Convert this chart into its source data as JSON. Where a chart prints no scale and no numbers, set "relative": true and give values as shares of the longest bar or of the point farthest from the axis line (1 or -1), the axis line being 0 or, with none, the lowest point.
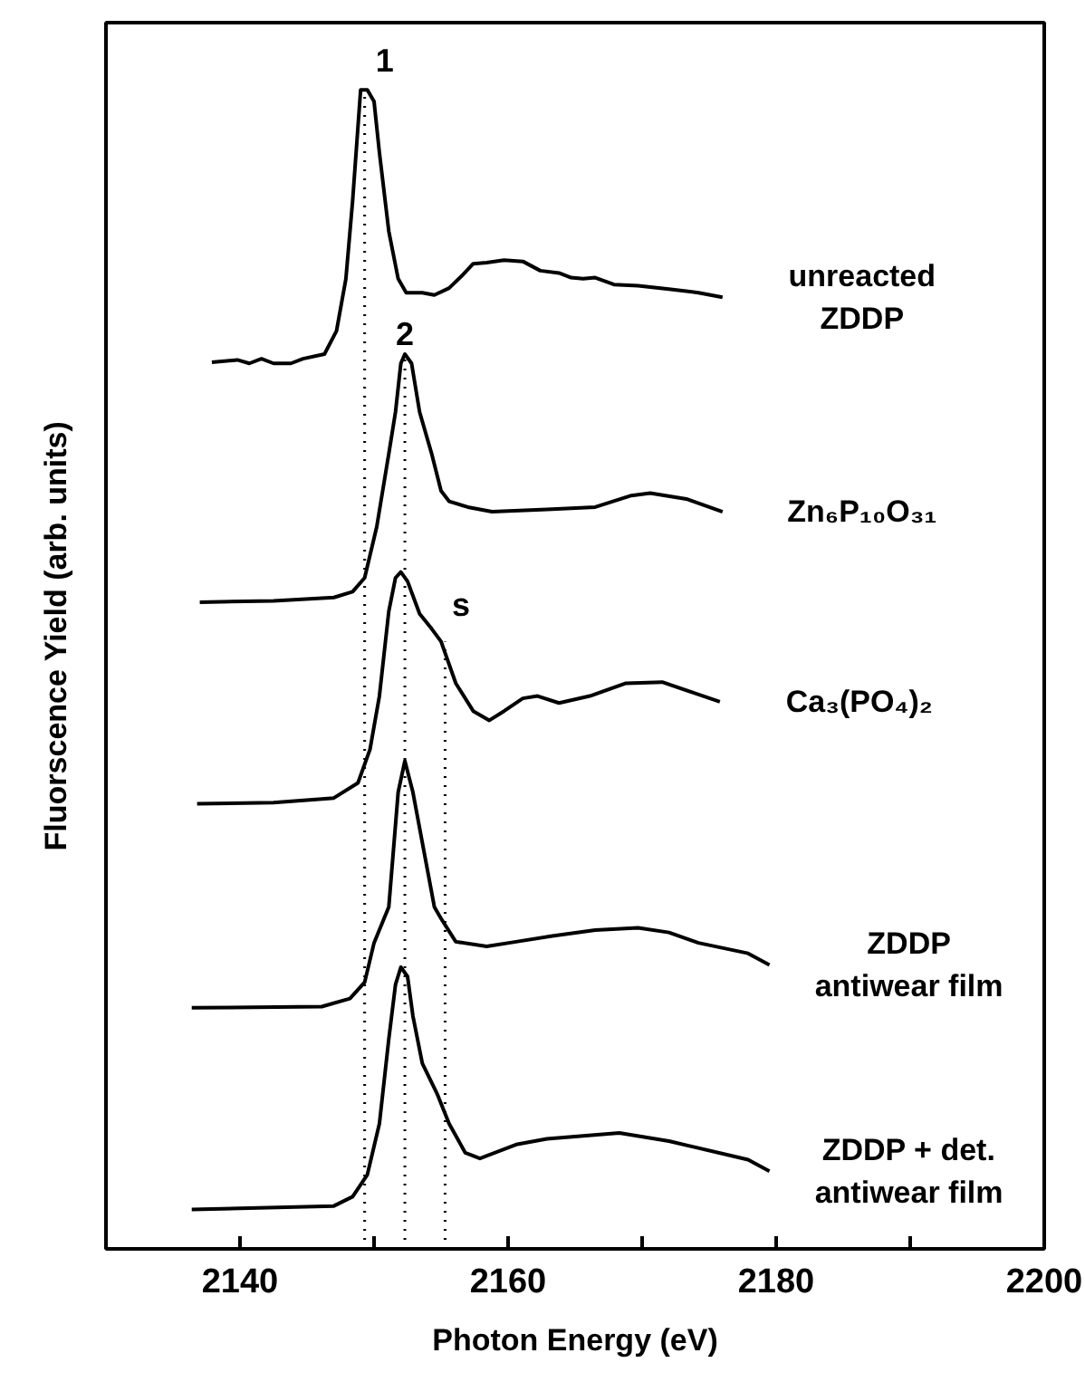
{
  "chart_data": {
    "type": "line",
    "relative": true,
    "xlabel": "Photon Energy (eV)",
    "ylabel": "Fluorscence Yield (arb. units)",
    "xlim": [
      2130,
      2200
    ],
    "xticks": [
      2140,
      {
        "value": 2150,
        "label": null
      },
      2160,
      {
        "value": 2170,
        "label": null
      },
      2180,
      {
        "value": 2190,
        "label": null
      },
      2200
    ],
    "tick_labels": "x",
    "grid": false,
    "marker": "none",
    "line_style": "solid",
    "series": [
      {
        "name": "unreacted\nZDDP",
        "color": "#000000",
        "x": [
          2137.9,
          2139.8,
          2140.7,
          2141.6,
          2142.5,
          2143.8,
          2144.7,
          2146.3,
          2147.2,
          2147.9,
          2148.4,
          2149.0,
          2149.5,
          2150.0,
          2150.4,
          2151.1,
          2151.8,
          2152.4,
          2153.6,
          2154.5,
          2155.6,
          2156.5,
          2157.4,
          2158.4,
          2159.7,
          2161.1,
          2162.4,
          2163.8,
          2164.7,
          2165.6,
          2166.5,
          2167.9,
          2169.7,
          2172.0,
          2174.2,
          2176.0
        ],
        "values": [
          0.765,
          0.767,
          0.764,
          0.768,
          0.764,
          0.764,
          0.768,
          0.772,
          0.792,
          0.837,
          0.904,
          1.0,
          1.0,
          0.99,
          0.946,
          0.878,
          0.837,
          0.825,
          0.825,
          0.823,
          0.829,
          0.839,
          0.85,
          0.851,
          0.853,
          0.852,
          0.844,
          0.842,
          0.838,
          0.837,
          0.838,
          0.832,
          0.831,
          0.828,
          0.825,
          0.821
        ]
      },
      {
        "name": "Zn₆P₁₀O₃₁",
        "color": "#000000",
        "x": [
          2137.0,
          2142.5,
          2147.0,
          2148.4,
          2149.3,
          2150.2,
          2151.1,
          2151.6,
          2152.0,
          2152.3,
          2152.8,
          2153.4,
          2154.3,
          2155.0,
          2155.6,
          2157.0,
          2158.8,
          2162.9,
          2166.5,
          2169.2,
          2170.6,
          2173.3,
          2176.0
        ],
        "values": [
          0.558,
          0.559,
          0.562,
          0.567,
          0.579,
          0.623,
          0.686,
          0.722,
          0.764,
          0.772,
          0.764,
          0.722,
          0.686,
          0.654,
          0.645,
          0.64,
          0.636,
          0.638,
          0.64,
          0.65,
          0.652,
          0.647,
          0.636
        ]
      },
      {
        "name": "Ca₃(PO₄)₂",
        "color": "#000000",
        "x": [
          2136.8,
          2142.5,
          2147.0,
          2148.8,
          2149.7,
          2150.4,
          2151.1,
          2151.6,
          2152.0,
          2152.5,
          2153.4,
          2154.3,
          2155.0,
          2156.1,
          2157.4,
          2158.6,
          2159.7,
          2161.1,
          2162.2,
          2163.8,
          2166.1,
          2168.8,
          2171.5,
          2175.8
        ],
        "values": [
          0.384,
          0.385,
          0.389,
          0.402,
          0.431,
          0.477,
          0.55,
          0.579,
          0.584,
          0.576,
          0.548,
          0.535,
          0.524,
          0.488,
          0.464,
          0.456,
          0.464,
          0.475,
          0.477,
          0.471,
          0.477,
          0.488,
          0.489,
          0.472
        ]
      },
      {
        "name": "ZDDP\nantiwear film",
        "color": "#000000",
        "x": [
          2136.4,
          2146.1,
          2148.2,
          2149.3,
          2150.0,
          2151.1,
          2151.8,
          2152.3,
          2152.9,
          2154.5,
          2155.0,
          2156.1,
          2158.4,
          2160.6,
          2163.3,
          2166.5,
          2169.7,
          2172.0,
          2174.2,
          2177.9,
          2179.5
        ],
        "values": [
          0.208,
          0.209,
          0.216,
          0.23,
          0.264,
          0.295,
          0.394,
          0.421,
          0.394,
          0.295,
          0.285,
          0.265,
          0.261,
          0.265,
          0.27,
          0.275,
          0.277,
          0.273,
          0.264,
          0.255,
          0.245
        ]
      },
      {
        "name": "ZDDP + det.\nantiwear film",
        "color": "#000000",
        "x": [
          2136.4,
          2147.0,
          2148.4,
          2149.5,
          2150.4,
          2151.1,
          2151.6,
          2152.0,
          2152.5,
          2152.9,
          2153.6,
          2154.7,
          2155.6,
          2156.8,
          2157.9,
          2160.6,
          2162.9,
          2168.3,
          2172.0,
          2177.9,
          2179.5
        ],
        "values": [
          0.034,
          0.037,
          0.045,
          0.064,
          0.108,
          0.181,
          0.228,
          0.243,
          0.235,
          0.201,
          0.16,
          0.134,
          0.108,
          0.083,
          0.078,
          0.09,
          0.095,
          0.1,
          0.093,
          0.077,
          0.067
        ]
      }
    ],
    "ref_lines": [
      {
        "axis": "x",
        "value": 2149.3,
        "color": "#000000",
        "line_style": "dotted"
      },
      {
        "axis": "x",
        "value": 2152.3,
        "color": "#000000",
        "line_style": "dotted"
      },
      {
        "axis": "x",
        "value": 2155.3,
        "color": "#000000",
        "line_style": "dotted"
      }
    ],
    "annotations": [
      {
        "text": "1",
        "x": 2149.3,
        "y": 1.0
      },
      {
        "text": "2",
        "x": 2152.3,
        "y": 0.772
      },
      {
        "text": "s",
        "x": 2155.0,
        "y": 0.524
      }
    ]
  }
}
